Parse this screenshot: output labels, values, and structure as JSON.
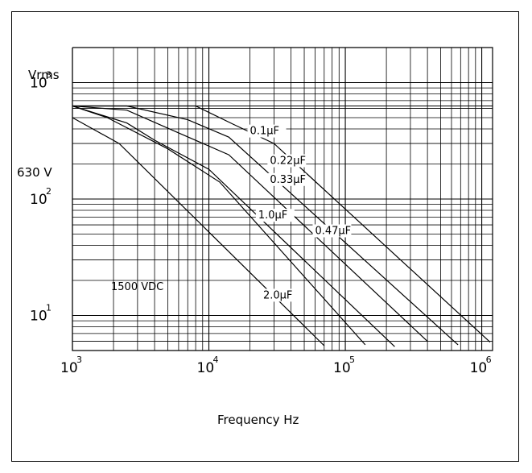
{
  "chart_data": {
    "type": "line",
    "title": "",
    "xlabel": "Frequency Hz",
    "ylabel": "Vrms",
    "xscale": "log",
    "yscale": "log",
    "xlim": [
      1000,
      1200000
    ],
    "ylim": [
      5,
      2000
    ],
    "grid": true,
    "x_ticks": [
      {
        "value": 1000,
        "base": "10",
        "exp": "3"
      },
      {
        "value": 10000,
        "base": "10",
        "exp": "4"
      },
      {
        "value": 100000,
        "base": "10",
        "exp": "5"
      },
      {
        "value": 1000000,
        "base": "10",
        "exp": "6"
      }
    ],
    "y_ticks": [
      {
        "value": 1000,
        "base": "10",
        "exp": "3"
      },
      {
        "value": 100,
        "base": "10",
        "exp": "2"
      },
      {
        "value": 10,
        "base": "10",
        "exp": "1"
      }
    ],
    "y_special_label": {
      "value": 630,
      "text": "630 V"
    },
    "annotation": {
      "text": "1500 VDC"
    },
    "series": [
      {
        "name": "0.1μF",
        "points": [
          [
            1000,
            630
          ],
          [
            8000,
            630
          ],
          [
            15000,
            440
          ],
          [
            30000,
            300
          ],
          [
            1150000,
            5.9
          ]
        ],
        "label_pos": [
          20000,
          360
        ]
      },
      {
        "name": "0.22μF",
        "points": [
          [
            1000,
            630
          ],
          [
            2500,
            630
          ],
          [
            7000,
            480
          ],
          [
            14000,
            340
          ],
          [
            670000,
            5.6
          ]
        ],
        "label_pos": [
          28000,
          200
        ]
      },
      {
        "name": "0.33μF",
        "points": [
          [
            1000,
            630
          ],
          [
            2500,
            580
          ],
          [
            6000,
            370
          ],
          [
            14000,
            240
          ],
          [
            400000,
            6.0
          ]
        ],
        "label_pos": [
          28000,
          138
        ]
      },
      {
        "name": "1.0μF",
        "points": [
          [
            1000,
            630
          ],
          [
            2500,
            450
          ],
          [
            4000,
            320
          ],
          [
            10000,
            180
          ],
          [
            230000,
            5.4
          ]
        ],
        "label_pos": [
          23000,
          68
        ]
      },
      {
        "name": "0.47μF",
        "points": [
          [
            1000,
            630
          ],
          [
            1800,
            500
          ],
          [
            5000,
            270
          ],
          [
            12000,
            140
          ],
          [
            140000,
            5.6
          ]
        ],
        "label_pos": [
          60000,
          50
        ]
      },
      {
        "name": "2.0μF",
        "points": [
          [
            1000,
            500
          ],
          [
            2200,
            300
          ],
          [
            70000,
            5.5
          ]
        ],
        "label_pos": [
          25000,
          14
        ]
      }
    ]
  }
}
